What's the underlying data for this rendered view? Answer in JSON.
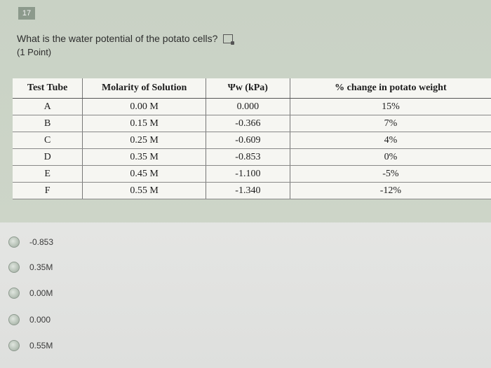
{
  "question": {
    "number": "17",
    "text": "What is the water potential of the potato cells?",
    "points": "(1 Point)"
  },
  "table": {
    "headers": [
      "Test Tube",
      "Molarity of Solution",
      "Ψw (kPa)",
      "% change in potato weight"
    ],
    "rows": [
      [
        "A",
        "0.00 M",
        "0.000",
        "15%"
      ],
      [
        "B",
        "0.15 M",
        "-0.366",
        "7%"
      ],
      [
        "C",
        "0.25 M",
        "-0.609",
        "4%"
      ],
      [
        "D",
        "0.35 M",
        "-0.853",
        "0%"
      ],
      [
        "E",
        "0.45 M",
        "-1.100",
        "-5%"
      ],
      [
        "F",
        "0.55 M",
        "-1.340",
        "-12%"
      ]
    ]
  },
  "options": [
    {
      "label": "-0.853",
      "selected": false
    },
    {
      "label": "0.35M",
      "selected": false
    },
    {
      "label": "0.00M",
      "selected": false
    },
    {
      "label": "0.000",
      "selected": false
    },
    {
      "label": "0.55M",
      "selected": false
    }
  ],
  "icons": {
    "immersive_reader": "immersive-reader-icon",
    "radio": "radio-button"
  }
}
